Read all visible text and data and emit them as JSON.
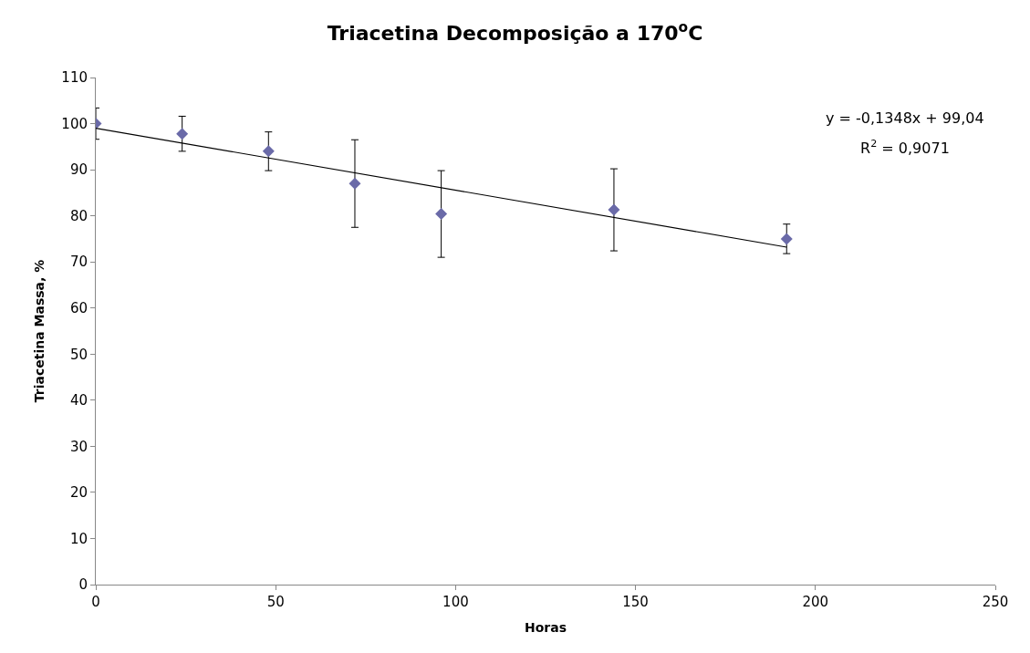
{
  "chart_data": {
    "type": "scatter",
    "title": "Triacetina Decomposição a 170$^{o}$C",
    "xlabel": "Horas",
    "ylabel": "Triacetina Massa, %",
    "series": [
      {
        "color": "#6a6aa8",
        "marker": "diamond",
        "x": [
          0,
          24,
          48,
          72,
          96,
          144,
          192
        ],
        "values": [
          100,
          97.8,
          94,
          87,
          80.4,
          81.3,
          75
        ],
        "errors": [
          3.4,
          3.8,
          4.2,
          9.5,
          9.4,
          8.9,
          3.2
        ]
      },
      {
        "type": "line",
        "color": "#000000",
        "marker": "none",
        "x": [
          0,
          192
        ],
        "values": [
          99,
          73.2
        ]
      }
    ],
    "annotations": [
      "y = -0,1348x + 99,04",
      "R$^{2}$ = 0,9071"
    ],
    "xlim": [
      0,
      250
    ],
    "xticks": [
      0,
      50,
      100,
      150,
      200,
      250
    ],
    "ylim": [
      0,
      110
    ],
    "yticks": [
      0,
      10,
      20,
      30,
      40,
      50,
      60,
      70,
      80,
      90,
      100,
      110
    ],
    "grid": false
  }
}
